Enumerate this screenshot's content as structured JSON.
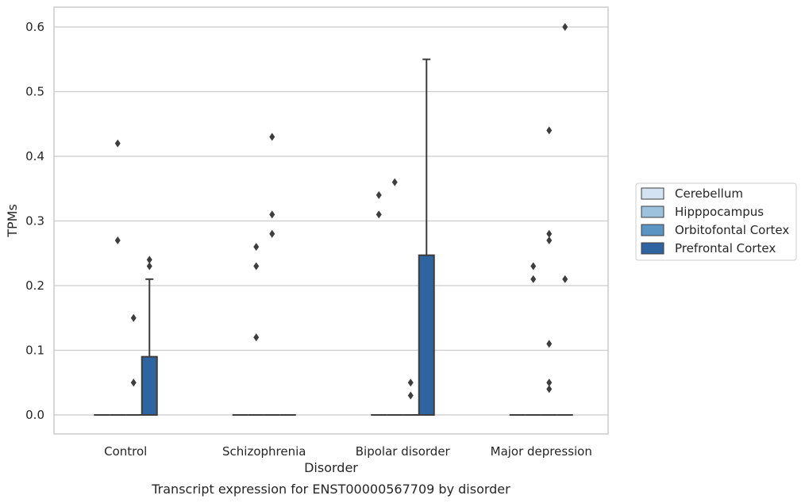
{
  "chart_data": {
    "type": "box",
    "caption": "Transcript expression for ENST00000567709 by disorder",
    "xlabel": "Disorder",
    "ylabel": "TPMs",
    "ylim": [
      -0.03,
      0.63
    ],
    "yticks": [
      0.0,
      0.1,
      0.2,
      0.3,
      0.4,
      0.5,
      0.6
    ],
    "ytick_labels": [
      "0.0",
      "0.1",
      "0.2",
      "0.3",
      "0.4",
      "0.5",
      "0.6"
    ],
    "grid": "horizontal",
    "legend_position": "right",
    "categories": [
      "Control",
      "Schizophrenia",
      "Bipolar disorder",
      "Major depression"
    ],
    "series": [
      {
        "name": "Cerebellum",
        "color": "#d3e3f2",
        "boxes": [
          {
            "q1": 0,
            "median": 0,
            "q3": 0,
            "whisker_low": 0,
            "whisker_high": 0,
            "outliers": []
          },
          {
            "q1": 0,
            "median": 0,
            "q3": 0,
            "whisker_low": 0,
            "whisker_high": 0,
            "outliers": []
          },
          {
            "q1": 0,
            "median": 0,
            "q3": 0,
            "whisker_low": 0,
            "whisker_high": 0,
            "outliers": [
              0.34,
              0.31
            ]
          },
          {
            "q1": 0,
            "median": 0,
            "q3": 0,
            "whisker_low": 0,
            "whisker_high": 0,
            "outliers": []
          }
        ]
      },
      {
        "name": "Hipppocampus",
        "color": "#9dc2de",
        "boxes": [
          {
            "q1": 0,
            "median": 0,
            "q3": 0,
            "whisker_low": 0,
            "whisker_high": 0,
            "outliers": [
              0.42,
              0.27
            ]
          },
          {
            "q1": 0,
            "median": 0,
            "q3": 0,
            "whisker_low": 0,
            "whisker_high": 0,
            "outliers": [
              0.26,
              0.23,
              0.12
            ]
          },
          {
            "q1": 0,
            "median": 0,
            "q3": 0,
            "whisker_low": 0,
            "whisker_high": 0,
            "outliers": [
              0.36
            ]
          },
          {
            "q1": 0,
            "median": 0,
            "q3": 0,
            "whisker_low": 0,
            "whisker_high": 0,
            "outliers": [
              0.23,
              0.21
            ]
          }
        ]
      },
      {
        "name": "Orbitofontal Cortex",
        "color": "#5b95c4",
        "boxes": [
          {
            "q1": 0,
            "median": 0,
            "q3": 0,
            "whisker_low": 0,
            "whisker_high": 0,
            "outliers": [
              0.15,
              0.05
            ]
          },
          {
            "q1": 0,
            "median": 0,
            "q3": 0,
            "whisker_low": 0,
            "whisker_high": 0,
            "outliers": [
              0.43,
              0.31,
              0.28
            ]
          },
          {
            "q1": 0,
            "median": 0,
            "q3": 0,
            "whisker_low": 0,
            "whisker_high": 0,
            "outliers": [
              0.05,
              0.03
            ]
          },
          {
            "q1": 0,
            "median": 0,
            "q3": 0,
            "whisker_low": 0,
            "whisker_high": 0,
            "outliers": [
              0.44,
              0.28,
              0.27,
              0.11,
              0.05,
              0.04
            ]
          }
        ]
      },
      {
        "name": "Prefrontal Cortex",
        "color": "#2e64a0",
        "boxes": [
          {
            "q1": 0,
            "median": 0,
            "q3": 0.09,
            "whisker_low": 0,
            "whisker_high": 0.21,
            "outliers": [
              0.24,
              0.23
            ]
          },
          {
            "q1": 0,
            "median": 0,
            "q3": 0,
            "whisker_low": 0,
            "whisker_high": 0,
            "outliers": []
          },
          {
            "q1": 0,
            "median": 0,
            "q3": 0.247,
            "whisker_low": 0,
            "whisker_high": 0.55,
            "outliers": []
          },
          {
            "q1": 0,
            "median": 0,
            "q3": 0,
            "whisker_low": 0,
            "whisker_high": 0,
            "outliers": [
              0.6,
              0.21
            ]
          }
        ]
      }
    ]
  }
}
